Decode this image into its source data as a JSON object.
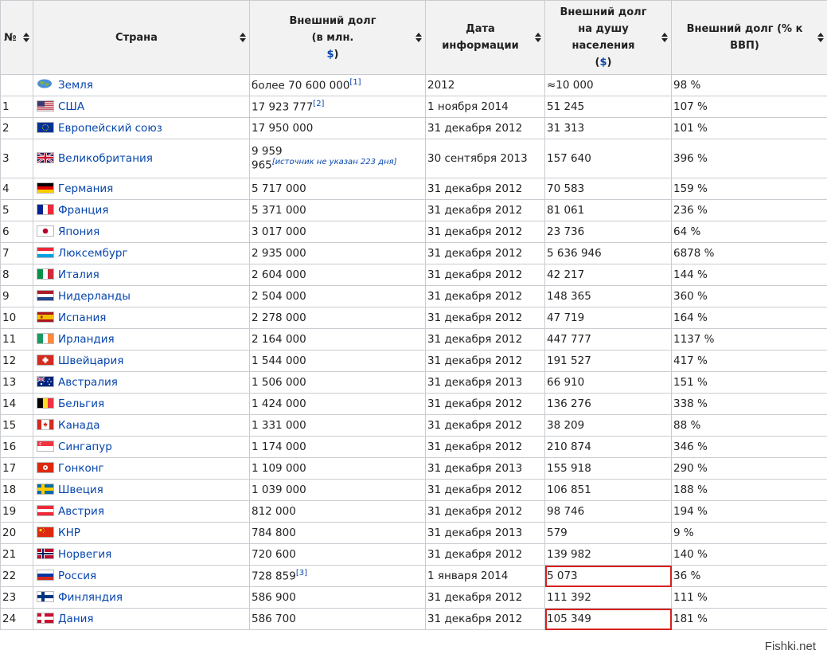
{
  "headers": {
    "num": "№",
    "country": "Страна",
    "debt": [
      "Внешний долг",
      "(в млн."
    ],
    "debt_usd": "$",
    "debt_close": ")",
    "date": [
      "Дата",
      "информации"
    ],
    "percap": [
      "Внешний долг",
      "на душу",
      "населения"
    ],
    "percap_usd": "$",
    "percap_open": "(",
    "percap_close": ")",
    "gdp": [
      "Внешний долг (% к",
      "ВВП)"
    ]
  },
  "rows": [
    {
      "num": "",
      "flag": "earth",
      "country": "Земля",
      "debt": "более 70 600 000",
      "sup": "[1]",
      "date": "2012",
      "percap": "≈10 000",
      "gdp": "98 %"
    },
    {
      "num": "1",
      "flag": "usa",
      "country": "США",
      "debt": "17 923 777",
      "sup": "[2]",
      "date": "1 ноября 2014",
      "percap": "51 245",
      "gdp": "107 %"
    },
    {
      "num": "2",
      "flag": "eu",
      "country": "Европейский союз",
      "debt": "17 950 000",
      "date": "31 декабря 2012",
      "percap": "31 313",
      "gdp": "101 %"
    },
    {
      "num": "3",
      "flag": "uk",
      "country": "Великобритания",
      "debt": "9 959",
      "debt2": "965",
      "cite": "[источник не указан 223 дня]",
      "date": "30 сентября 2013",
      "percap": "157 640",
      "gdp": "396 %"
    },
    {
      "num": "4",
      "flag": "de",
      "country": "Германия",
      "debt": "5 717 000",
      "date": "31 декабря 2012",
      "percap": "70 583",
      "gdp": "159 %"
    },
    {
      "num": "5",
      "flag": "fr",
      "country": "Франция",
      "debt": "5 371 000",
      "date": "31 декабря 2012",
      "percap": "81 061",
      "gdp": "236 %"
    },
    {
      "num": "6",
      "flag": "jp",
      "country": "Япония",
      "debt": "3 017 000",
      "date": "31 декабря 2012",
      "percap": "23 736",
      "gdp": "64 %"
    },
    {
      "num": "7",
      "flag": "lu",
      "country": "Люксембург",
      "debt": "2 935 000",
      "date": "31 декабря 2012",
      "percap": "5 636 946",
      "gdp": "6878 %"
    },
    {
      "num": "8",
      "flag": "it",
      "country": "Италия",
      "debt": "2 604 000",
      "date": "31 декабря 2012",
      "percap": "42 217",
      "gdp": "144 %"
    },
    {
      "num": "9",
      "flag": "nl",
      "country": "Нидерланды",
      "debt": "2 504 000",
      "date": "31 декабря 2012",
      "percap": "148 365",
      "gdp": "360 %"
    },
    {
      "num": "10",
      "flag": "es",
      "country": "Испания",
      "debt": "2 278 000",
      "date": "31 декабря 2012",
      "percap": "47 719",
      "gdp": "164 %"
    },
    {
      "num": "11",
      "flag": "ie",
      "country": "Ирландия",
      "debt": "2 164 000",
      "date": "31 декабря 2012",
      "percap": "447 777",
      "gdp": "1137 %"
    },
    {
      "num": "12",
      "flag": "ch",
      "country": "Швейцария",
      "debt": "1 544 000",
      "date": "31 декабря 2012",
      "percap": "191 527",
      "gdp": "417 %"
    },
    {
      "num": "13",
      "flag": "au",
      "country": "Австралия",
      "debt": "1 506 000",
      "date": "31 декабря 2013",
      "percap": "66 910",
      "gdp": "151 %"
    },
    {
      "num": "14",
      "flag": "be",
      "country": "Бельгия",
      "debt": "1 424 000",
      "date": "31 декабря 2012",
      "percap": "136 276",
      "gdp": "338 %"
    },
    {
      "num": "15",
      "flag": "ca",
      "country": "Канада",
      "debt": "1 331 000",
      "date": "31 декабря 2012",
      "percap": "38 209",
      "gdp": "88 %"
    },
    {
      "num": "16",
      "flag": "sg",
      "country": "Сингапур",
      "debt": "1 174 000",
      "date": "31 декабря 2012",
      "percap": "210 874",
      "gdp": "346 %"
    },
    {
      "num": "17",
      "flag": "hk",
      "country": "Гонконг",
      "debt": "1 109 000",
      "date": "31 декабря 2013",
      "percap": "155 918",
      "gdp": "290 %"
    },
    {
      "num": "18",
      "flag": "se",
      "country": "Швеция",
      "debt": "1 039 000",
      "date": "31 декабря 2012",
      "percap": "106 851",
      "gdp": "188 %"
    },
    {
      "num": "19",
      "flag": "at",
      "country": "Австрия",
      "debt": "812 000",
      "date": "31 декабря 2012",
      "percap": "98 746",
      "gdp": "194 %"
    },
    {
      "num": "20",
      "flag": "cn",
      "country": "КНР",
      "debt": "784 800",
      "date": "31 декабря 2013",
      "percap": "579",
      "gdp": "9 %"
    },
    {
      "num": "21",
      "flag": "no",
      "country": "Норвегия",
      "debt": "720 600",
      "date": "31 декабря 2012",
      "percap": "139 982",
      "gdp": "140 %"
    },
    {
      "num": "22",
      "flag": "ru",
      "country": "Россия",
      "debt": "728 859",
      "sup": "[3]",
      "date": "1 января 2014",
      "percap": "5 073",
      "gdp": "36 %",
      "highlight": true
    },
    {
      "num": "23",
      "flag": "fi",
      "country": "Финляндия",
      "debt": "586 900",
      "date": "31 декабря 2012",
      "percap": "111 392",
      "gdp": "111 %"
    },
    {
      "num": "24",
      "flag": "dk",
      "country": "Дания",
      "debt": "586 700",
      "date": "31 декабря 2012",
      "percap": "105 349",
      "gdp": "181 %",
      "highlight": true
    }
  ],
  "watermark": "Fishki.net",
  "colors": {
    "link": "#0645ad",
    "highlight": "#d62020",
    "header_bg": "#f2f2f2",
    "border": "#c8ccd1"
  }
}
